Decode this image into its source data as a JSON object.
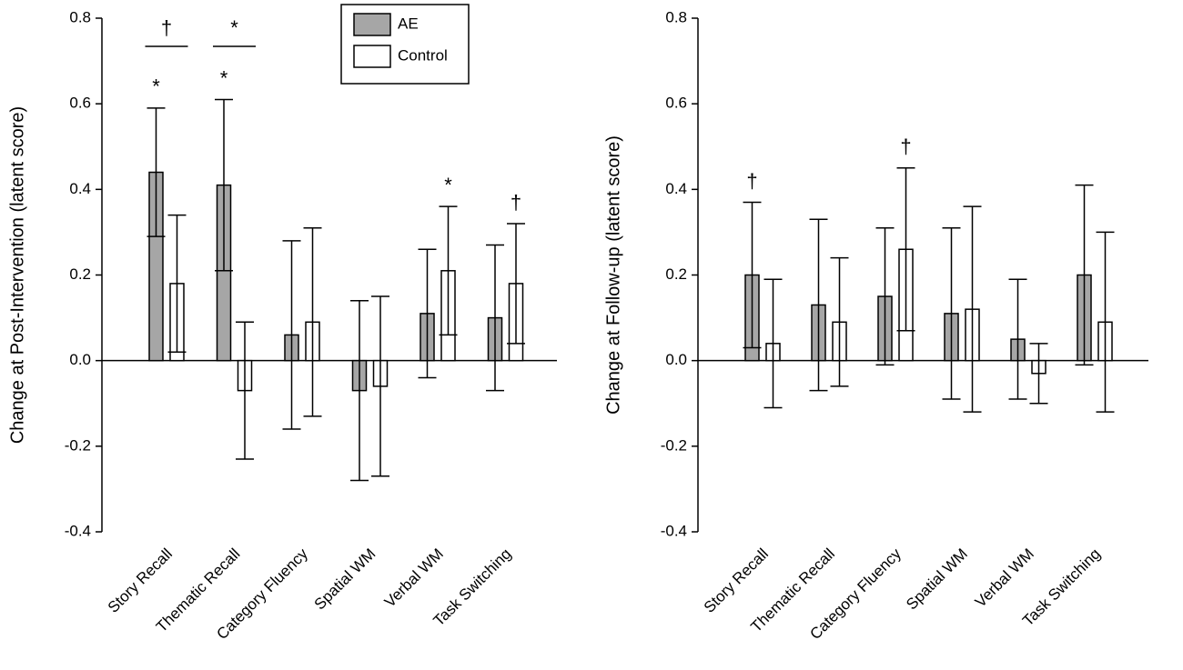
{
  "chart_data": [
    {
      "type": "bar",
      "y_label": "Change at Post-Intervention (latent score)",
      "categories": [
        "Story Recall",
        "Thematic Recall",
        "Category Fluency",
        "Spatial WM",
        "Verbal WM",
        "Task Switching"
      ],
      "series": [
        {
          "name": "AE",
          "color": "#a6a6a6",
          "values": [
            0.44,
            0.41,
            0.06,
            -0.07,
            0.11,
            0.1
          ],
          "errors": [
            0.15,
            0.2,
            0.22,
            0.21,
            0.15,
            0.17
          ]
        },
        {
          "name": "Control",
          "color": "#ffffff",
          "values": [
            0.18,
            -0.07,
            0.09,
            -0.06,
            0.21,
            0.18
          ],
          "errors": [
            0.16,
            0.16,
            0.22,
            0.21,
            0.15,
            0.14
          ]
        }
      ],
      "ylim": [
        -0.4,
        0.8
      ],
      "yticks": [
        -0.4,
        -0.2,
        {
          "value": 0,
          "label": "0.0"
        },
        0.2,
        0.4,
        0.6,
        0.8
      ],
      "legend": "upper center",
      "annotations": [
        {
          "text": "*",
          "category": "Story Recall",
          "series": "AE"
        },
        {
          "text": "*",
          "category": "Thematic Recall",
          "series": "AE"
        },
        {
          "text": "*",
          "category": "Verbal WM",
          "series": "Control"
        },
        {
          "text": "†",
          "category": "Task Switching",
          "series": "Control"
        }
      ],
      "bracket_annotations": [
        {
          "text": "†",
          "category": "Story Recall"
        },
        {
          "text": "*",
          "category": "Thematic Recall"
        }
      ]
    },
    {
      "type": "bar",
      "y_label": "Change at Follow-up (latent score)",
      "categories": [
        "Story Recall",
        "Thematic Recall",
        "Category Fluency",
        "Spatial WM",
        "Verbal WM",
        "Task Switching"
      ],
      "series": [
        {
          "name": "AE",
          "color": "#a6a6a6",
          "values": [
            0.2,
            0.13,
            0.15,
            0.11,
            0.05,
            0.2
          ],
          "errors": [
            0.17,
            0.2,
            0.16,
            0.2,
            0.14,
            0.21
          ]
        },
        {
          "name": "Control",
          "color": "#ffffff",
          "values": [
            0.04,
            0.09,
            0.26,
            0.12,
            -0.03,
            0.09
          ],
          "errors": [
            0.15,
            0.15,
            0.19,
            0.24,
            0.07,
            0.21
          ]
        }
      ],
      "ylim": [
        -0.4,
        0.8
      ],
      "yticks": [
        -0.4,
        -0.2,
        {
          "value": 0,
          "label": "0.0"
        },
        0.2,
        0.4,
        0.6,
        0.8
      ],
      "annotations": [
        {
          "text": "†",
          "category": "Story Recall",
          "series": "AE"
        },
        {
          "text": "†",
          "category": "Category Fluency",
          "series": "Control"
        }
      ]
    }
  ]
}
